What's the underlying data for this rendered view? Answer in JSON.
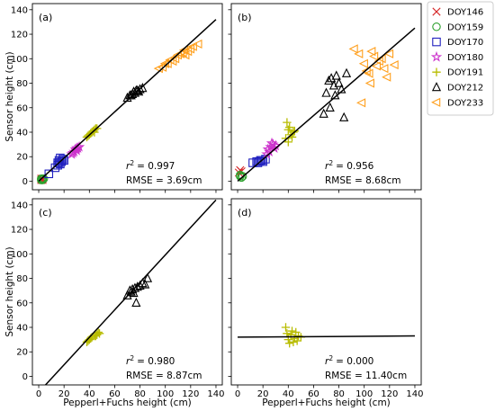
{
  "chart_data": [
    {
      "type": "scatter",
      "panel_label": "(a)",
      "xlabel": "",
      "ylabel": "Sensor height (cm)",
      "xlim": [
        -5,
        145
      ],
      "ylim": [
        -7,
        145
      ],
      "xticks": [
        0,
        20,
        40,
        60,
        80,
        100,
        120,
        140
      ],
      "yticks": [
        0,
        20,
        40,
        60,
        80,
        100,
        120,
        140
      ],
      "show_x_ticklabels": false,
      "show_y_ticklabels": true,
      "fit_line": {
        "x": [
          0,
          140
        ],
        "y": [
          0,
          132
        ]
      },
      "stats": {
        "r2": "= 0.997",
        "rmse": "RMSE = 3.69cm"
      },
      "series": [
        {
          "name": "DOY146",
          "marker": "x",
          "color": "#d62728",
          "points": [
            [
              2,
              1
            ],
            [
              3,
              2
            ],
            [
              2,
              2
            ],
            [
              3,
              1
            ]
          ]
        },
        {
          "name": "DOY159",
          "marker": "circle",
          "color": "#2ca02c",
          "points": [
            [
              2,
              1
            ],
            [
              3,
              1
            ],
            [
              4,
              2
            ],
            [
              2,
              2
            ],
            [
              3,
              2
            ]
          ]
        },
        {
          "name": "DOY170",
          "marker": "square",
          "color": "#1f1fbf",
          "points": [
            [
              8,
              6
            ],
            [
              13,
              11
            ],
            [
              15,
              13
            ],
            [
              16,
              15
            ],
            [
              17,
              14
            ],
            [
              18,
              16
            ],
            [
              16,
              17
            ],
            [
              19,
              18
            ],
            [
              20,
              17
            ],
            [
              15,
              15
            ],
            [
              17,
              19
            ]
          ]
        },
        {
          "name": "DOY180",
          "marker": "star",
          "color": "#cc33cc",
          "points": [
            [
              26,
              22
            ],
            [
              28,
              24
            ],
            [
              30,
              25
            ],
            [
              31,
              27
            ],
            [
              29,
              26
            ],
            [
              32,
              28
            ],
            [
              27,
              23
            ],
            [
              30,
              27
            ]
          ]
        },
        {
          "name": "DOY191",
          "marker": "plus",
          "color": "#b8bc00",
          "points": [
            [
              38,
              36
            ],
            [
              40,
              38
            ],
            [
              42,
              40
            ],
            [
              43,
              41
            ],
            [
              44,
              42
            ],
            [
              45,
              43
            ],
            [
              41,
              39
            ],
            [
              46,
              43
            ],
            [
              39,
              37
            ],
            [
              44,
              40
            ]
          ]
        },
        {
          "name": "DOY212",
          "marker": "triangle-up",
          "color": "#000000",
          "points": [
            [
              70,
              68
            ],
            [
              72,
              70
            ],
            [
              74,
              71
            ],
            [
              75,
              73
            ],
            [
              76,
              72
            ],
            [
              78,
              74
            ],
            [
              80,
              75
            ],
            [
              82,
              76
            ],
            [
              73,
              70
            ],
            [
              77,
              74
            ],
            [
              79,
              73
            ]
          ]
        },
        {
          "name": "DOY233",
          "marker": "triangle-left",
          "color": "#ff9f1c",
          "points": [
            [
              95,
              92
            ],
            [
              100,
              96
            ],
            [
              104,
              99
            ],
            [
              108,
              100
            ],
            [
              110,
              103
            ],
            [
              112,
              104
            ],
            [
              114,
              105
            ],
            [
              116,
              103
            ],
            [
              118,
              106
            ],
            [
              120,
              108
            ],
            [
              106,
              98
            ],
            [
              102,
              96
            ],
            [
              115,
              107
            ],
            [
              122,
              110
            ],
            [
              126,
              112
            ],
            [
              98,
              93
            ]
          ]
        }
      ]
    },
    {
      "type": "scatter",
      "panel_label": "(b)",
      "xlabel": "",
      "ylabel": "",
      "xlim": [
        -5,
        145
      ],
      "ylim": [
        -7,
        145
      ],
      "xticks": [
        0,
        20,
        40,
        60,
        80,
        100,
        120,
        140
      ],
      "yticks": [
        0,
        20,
        40,
        60,
        80,
        100,
        120,
        140
      ],
      "show_x_ticklabels": false,
      "show_y_ticklabels": false,
      "fit_line": {
        "x": [
          0,
          140
        ],
        "y": [
          0,
          125
        ]
      },
      "stats": {
        "r2": "= 0.956",
        "rmse": "RMSE = 8.68cm"
      },
      "series": [
        {
          "name": "DOY146",
          "marker": "x",
          "color": "#d62728",
          "points": [
            [
              2,
              9
            ],
            [
              3,
              8
            ],
            [
              1,
              7
            ]
          ]
        },
        {
          "name": "DOY159",
          "marker": "circle",
          "color": "#2ca02c",
          "points": [
            [
              2,
              4
            ],
            [
              3,
              3
            ],
            [
              2,
              5
            ],
            [
              4,
              4
            ]
          ]
        },
        {
          "name": "DOY170",
          "marker": "square",
          "color": "#1f1fbf",
          "points": [
            [
              12,
              15
            ],
            [
              15,
              16
            ],
            [
              17,
              16
            ],
            [
              18,
              17
            ],
            [
              19,
              17
            ],
            [
              20,
              16
            ],
            [
              22,
              18
            ],
            [
              16,
              15
            ]
          ]
        },
        {
          "name": "DOY180",
          "marker": "star",
          "color": "#cc33cc",
          "points": [
            [
              24,
              26
            ],
            [
              26,
              28
            ],
            [
              28,
              30
            ],
            [
              30,
              29
            ],
            [
              25,
              24
            ],
            [
              27,
              31
            ],
            [
              29,
              27
            ],
            [
              23,
              22
            ]
          ]
        },
        {
          "name": "DOY191",
          "marker": "plus",
          "color": "#b8bc00",
          "points": [
            [
              38,
              35
            ],
            [
              40,
              42
            ],
            [
              42,
              38
            ],
            [
              44,
              40
            ],
            [
              41,
              44
            ],
            [
              39,
              48
            ],
            [
              43,
              36
            ],
            [
              40,
              32
            ],
            [
              45,
              41
            ]
          ]
        },
        {
          "name": "DOY212",
          "marker": "triangle-up",
          "color": "#000000",
          "points": [
            [
              68,
              55
            ],
            [
              70,
              72
            ],
            [
              72,
              82
            ],
            [
              74,
              84
            ],
            [
              76,
              78
            ],
            [
              78,
              86
            ],
            [
              80,
              80
            ],
            [
              82,
              75
            ],
            [
              84,
              52
            ],
            [
              86,
              88
            ],
            [
              73,
              60
            ],
            [
              77,
              70
            ]
          ]
        },
        {
          "name": "DOY233",
          "marker": "triangle-left",
          "color": "#ff9f1c",
          "points": [
            [
              92,
              108
            ],
            [
              96,
              104
            ],
            [
              100,
              96
            ],
            [
              102,
              90
            ],
            [
              105,
              80
            ],
            [
              108,
              102
            ],
            [
              110,
              94
            ],
            [
              112,
              98
            ],
            [
              114,
              100
            ],
            [
              116,
              92
            ],
            [
              118,
              85
            ],
            [
              120,
              104
            ],
            [
              124,
              95
            ],
            [
              98,
              64
            ],
            [
              106,
              106
            ],
            [
              104,
              88
            ]
          ]
        }
      ]
    },
    {
      "type": "scatter",
      "panel_label": "(c)",
      "xlabel": "Pepperl+Fuchs height (cm)",
      "ylabel": "Sensor height (cm)",
      "xlim": [
        -5,
        145
      ],
      "ylim": [
        -7,
        145
      ],
      "xticks": [
        0,
        20,
        40,
        60,
        80,
        100,
        120,
        140
      ],
      "yticks": [
        0,
        20,
        40,
        60,
        80,
        100,
        120,
        140
      ],
      "show_x_ticklabels": true,
      "show_y_ticklabels": true,
      "fit_line": {
        "x": [
          0,
          140
        ],
        "y": [
          -13,
          144
        ]
      },
      "stats": {
        "r2": "= 0.980",
        "rmse": "RMSE = 8.87cm"
      },
      "series": [
        {
          "name": "DOY191",
          "marker": "plus",
          "color": "#b8bc00",
          "points": [
            [
              38,
              28
            ],
            [
              40,
              30
            ],
            [
              42,
              32
            ],
            [
              44,
              33
            ],
            [
              46,
              34
            ],
            [
              48,
              35
            ],
            [
              41,
              31
            ],
            [
              45,
              33
            ],
            [
              39,
              29
            ],
            [
              47,
              36
            ]
          ]
        },
        {
          "name": "DOY212",
          "marker": "triangle-up",
          "color": "#000000",
          "points": [
            [
              70,
              66
            ],
            [
              72,
              70
            ],
            [
              74,
              71
            ],
            [
              75,
              68
            ],
            [
              76,
              72
            ],
            [
              78,
              73
            ],
            [
              80,
              74
            ],
            [
              82,
              76
            ],
            [
              84,
              75
            ],
            [
              86,
              80
            ],
            [
              77,
              60
            ],
            [
              73,
              69
            ]
          ]
        }
      ]
    },
    {
      "type": "scatter",
      "panel_label": "(d)",
      "xlabel": "Pepperl+Fuchs height (cm)",
      "ylabel": "",
      "xlim": [
        -5,
        145
      ],
      "ylim": [
        -7,
        145
      ],
      "xticks": [
        0,
        20,
        40,
        60,
        80,
        100,
        120,
        140
      ],
      "yticks": [
        0,
        20,
        40,
        60,
        80,
        100,
        120,
        140
      ],
      "show_x_ticklabels": true,
      "show_y_ticklabels": false,
      "fit_line": {
        "x": [
          0,
          140
        ],
        "y": [
          32,
          33
        ]
      },
      "stats": {
        "r2": "= 0.000",
        "rmse": "RMSE = 11.40cm"
      },
      "series": [
        {
          "name": "DOY191",
          "marker": "plus",
          "color": "#b8bc00",
          "points": [
            [
              38,
              40
            ],
            [
              40,
              30
            ],
            [
              42,
              34
            ],
            [
              44,
              28
            ],
            [
              46,
              36
            ],
            [
              48,
              33
            ],
            [
              41,
              27
            ],
            [
              45,
              31
            ],
            [
              39,
              35
            ],
            [
              47,
              29
            ],
            [
              43,
              37
            ],
            [
              50,
              32
            ]
          ]
        }
      ]
    }
  ],
  "legend": {
    "placement": "right",
    "items": [
      {
        "name": "DOY146",
        "marker": "x",
        "color": "#d62728"
      },
      {
        "name": "DOY159",
        "marker": "circle",
        "color": "#2ca02c"
      },
      {
        "name": "DOY170",
        "marker": "square",
        "color": "#1f1fbf"
      },
      {
        "name": "DOY180",
        "marker": "star",
        "color": "#cc33cc"
      },
      {
        "name": "DOY191",
        "marker": "plus",
        "color": "#b8bc00"
      },
      {
        "name": "DOY212",
        "marker": "triangle-up",
        "color": "#000000"
      },
      {
        "name": "DOY233",
        "marker": "triangle-left",
        "color": "#ff9f1c"
      }
    ]
  }
}
